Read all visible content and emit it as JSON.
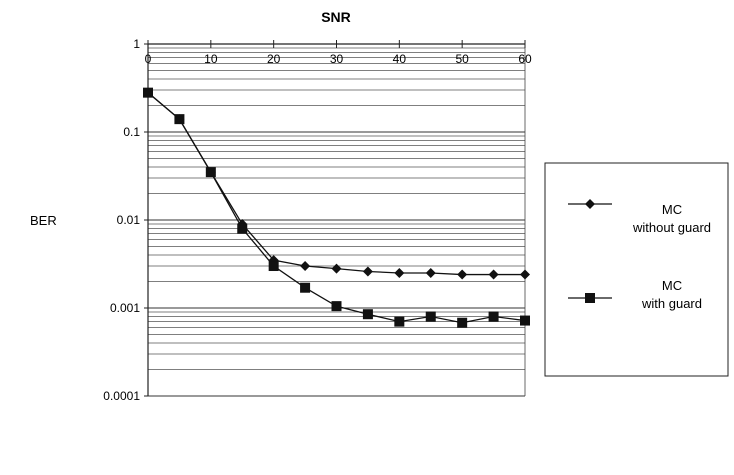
{
  "chart_data": {
    "type": "line",
    "title": "SNR",
    "xlabel": "",
    "ylabel": "BER",
    "x_scale": "linear",
    "y_scale": "log",
    "xlim": [
      0,
      60
    ],
    "ylim": [
      0.0001,
      1
    ],
    "x_ticks": [
      "0",
      "10",
      "20",
      "30",
      "40",
      "50",
      "60"
    ],
    "y_ticks": [
      "1",
      "0.1",
      "0.01",
      "0.001",
      "0.0001"
    ],
    "grid": true,
    "legend_position": "right",
    "x": [
      0,
      5,
      10,
      15,
      20,
      25,
      30,
      35,
      40,
      45,
      50,
      55,
      60
    ],
    "series": [
      {
        "name": "MC without guard",
        "name_lines": [
          "MC",
          "without guard"
        ],
        "marker": "diamond",
        "values": [
          0.28,
          0.14,
          0.035,
          0.009,
          0.0035,
          0.003,
          0.0028,
          0.0026,
          0.0025,
          0.0025,
          0.0024,
          0.0024,
          0.0024
        ]
      },
      {
        "name": "MC with guard",
        "name_lines": [
          "MC",
          "with guard"
        ],
        "marker": "square",
        "values": [
          0.28,
          0.14,
          0.035,
          0.008,
          0.003,
          0.0017,
          0.00105,
          0.00085,
          0.0007,
          0.0008,
          0.00068,
          0.0008,
          0.00072
        ]
      }
    ]
  }
}
